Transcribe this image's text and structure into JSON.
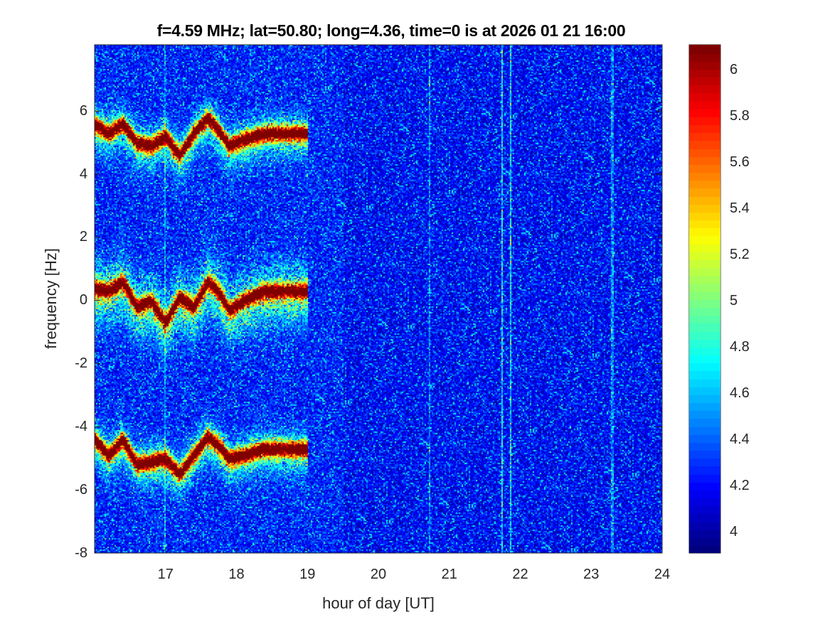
{
  "chart_data": {
    "type": "heatmap",
    "title": "f=4.59 MHz;  lat=50.80; long=4.36, time=0 is at 2026 01 21 16:00",
    "xlabel": "hour of day [UT]",
    "ylabel": "frequency [Hz]",
    "xlim": [
      16,
      24
    ],
    "ylim": [
      -8,
      8.1
    ],
    "xticks": [
      "17",
      "18",
      "19",
      "20",
      "21",
      "22",
      "23",
      "24"
    ],
    "yticks": [
      "-8",
      "-6",
      "-4",
      "-2",
      "0",
      "2",
      "4",
      "6"
    ],
    "colormap": "jet",
    "clim": [
      3.91,
      6.11
    ],
    "colorbar_ticks": [
      "4",
      "4.2",
      "4.4",
      "4.6",
      "4.8",
      "5",
      "5.2",
      "5.4",
      "5.6",
      "5.8",
      "6"
    ],
    "background_level": 4.2,
    "ridge_series": [
      {
        "name": "upper doppler trace",
        "x": [
          16.0,
          16.2,
          16.4,
          16.6,
          16.8,
          17.0,
          17.2,
          17.4,
          17.6,
          17.75,
          17.9,
          18.1,
          18.4,
          18.7,
          19.0
        ],
        "y": [
          5.6,
          5.3,
          5.6,
          5.0,
          4.9,
          5.2,
          4.6,
          5.3,
          5.8,
          5.4,
          4.9,
          5.1,
          5.3,
          5.3,
          5.3
        ]
      },
      {
        "name": "central doppler trace",
        "x": [
          16.0,
          16.2,
          16.4,
          16.6,
          16.8,
          17.0,
          17.2,
          17.4,
          17.6,
          17.75,
          17.9,
          18.1,
          18.4,
          18.7,
          19.0
        ],
        "y": [
          0.4,
          0.3,
          0.6,
          -0.2,
          0.0,
          -0.7,
          0.1,
          -0.2,
          0.6,
          0.3,
          -0.3,
          0.0,
          0.3,
          0.3,
          0.3
        ]
      },
      {
        "name": "lower doppler trace",
        "x": [
          16.0,
          16.2,
          16.4,
          16.6,
          16.8,
          17.0,
          17.2,
          17.4,
          17.6,
          17.75,
          17.9,
          18.1,
          18.4,
          18.7,
          19.0
        ],
        "y": [
          -4.4,
          -4.9,
          -4.4,
          -5.2,
          -5.1,
          -5.0,
          -5.5,
          -4.9,
          -4.3,
          -4.6,
          -5.0,
          -4.9,
          -4.7,
          -4.7,
          -4.7
        ]
      }
    ],
    "vertical_interference_hours": [
      17.0,
      20.72,
      21.75,
      21.87,
      23.3
    ]
  }
}
